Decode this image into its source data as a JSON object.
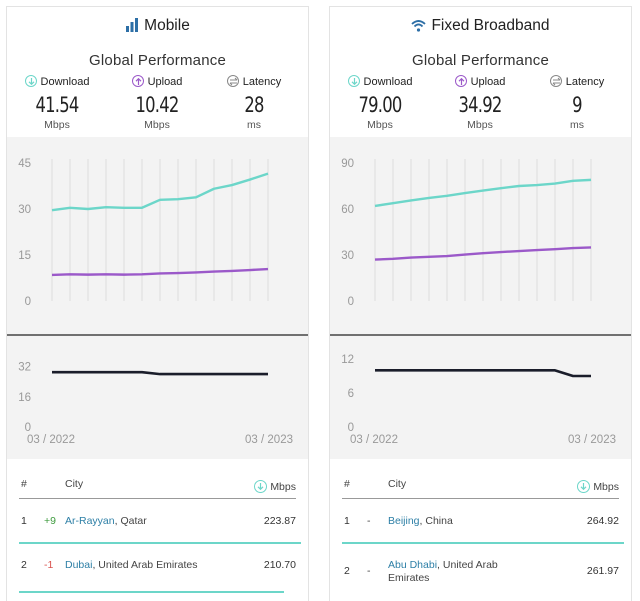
{
  "colors": {
    "download": "#6cd6c9",
    "upload": "#9b59c9",
    "latency": "#1a1d2a",
    "grid": "#dcdcdc",
    "axis_label": "#999999",
    "city_link": "#2d7fa6",
    "positive": "#3d9b3d",
    "negative": "#d9534f"
  },
  "panels": [
    {
      "title": "Mobile",
      "title_icon": "signal-bars-icon",
      "subtitle": "Global Performance",
      "metrics": [
        {
          "label": "Download",
          "value": "41.54",
          "unit": "Mbps",
          "icon": "download-arrow-icon"
        },
        {
          "label": "Upload",
          "value": "10.42",
          "unit": "Mbps",
          "icon": "upload-arrow-icon"
        },
        {
          "label": "Latency",
          "value": "28",
          "unit": "ms",
          "icon": "latency-arrows-icon"
        }
      ],
      "table": {
        "col_rank": "#",
        "col_city": "City",
        "col_unit": "Mbps",
        "rows": [
          {
            "rank": "1",
            "change": "+9",
            "city": "Ar-Rayyan",
            "country": "Qatar",
            "value": "223.87"
          },
          {
            "rank": "2",
            "change": "-1",
            "city": "Dubai",
            "country": "United Arab Emirates",
            "value": "210.70"
          }
        ]
      }
    },
    {
      "title": "Fixed Broadband",
      "title_icon": "wifi-icon",
      "subtitle": "Global Performance",
      "metrics": [
        {
          "label": "Download",
          "value": "79.00",
          "unit": "Mbps",
          "icon": "download-arrow-icon"
        },
        {
          "label": "Upload",
          "value": "34.92",
          "unit": "Mbps",
          "icon": "upload-arrow-icon"
        },
        {
          "label": "Latency",
          "value": "9",
          "unit": "ms",
          "icon": "latency-arrows-icon"
        }
      ],
      "table": {
        "col_rank": "#",
        "col_city": "City",
        "col_unit": "Mbps",
        "rows": [
          {
            "rank": "1",
            "change": "-",
            "city": "Beijing",
            "country": "China",
            "value": "264.92"
          },
          {
            "rank": "2",
            "change": "-",
            "city": "Abu Dhabi",
            "country": "United Arab Emirates",
            "value": "261.97"
          }
        ]
      }
    }
  ],
  "chart_data": [
    {
      "type": "line",
      "panel": "Mobile",
      "x_tick_labels": [
        "03 / 2022",
        "03 / 2023"
      ],
      "x": [
        "03/2022",
        "04/2022",
        "05/2022",
        "06/2022",
        "07/2022",
        "08/2022",
        "09/2022",
        "10/2022",
        "11/2022",
        "12/2022",
        "01/2023",
        "02/2023",
        "03/2023"
      ],
      "speed_chart": {
        "yticks": [
          0,
          15,
          30,
          45
        ],
        "ylim": [
          0,
          45
        ],
        "grid": true,
        "series": [
          {
            "metric": "download",
            "values": [
              29.6,
              30.4,
              30.0,
              30.6,
              30.4,
              30.4,
              33.0,
              33.2,
              33.8,
              36.6,
              37.8,
              39.6,
              41.54
            ]
          },
          {
            "metric": "upload",
            "values": [
              8.5,
              8.7,
              8.6,
              8.7,
              8.6,
              8.7,
              9.0,
              9.1,
              9.3,
              9.6,
              9.8,
              10.1,
              10.42
            ]
          }
        ]
      },
      "latency_chart": {
        "yticks": [
          0,
          16,
          32
        ],
        "ylim": [
          0,
          36
        ],
        "series": [
          {
            "metric": "latency",
            "values": [
              29,
              29,
              29,
              29,
              29,
              29,
              28,
              28,
              28,
              28,
              28,
              28,
              28
            ]
          }
        ]
      }
    },
    {
      "type": "line",
      "panel": "Fixed Broadband",
      "x_tick_labels": [
        "03 / 2022",
        "03 / 2023"
      ],
      "x": [
        "03/2022",
        "04/2022",
        "05/2022",
        "06/2022",
        "07/2022",
        "08/2022",
        "09/2022",
        "10/2022",
        "11/2022",
        "12/2022",
        "01/2023",
        "02/2023",
        "03/2023"
      ],
      "speed_chart": {
        "yticks": [
          0,
          30,
          60,
          90
        ],
        "ylim": [
          0,
          90
        ],
        "grid": true,
        "series": [
          {
            "metric": "download",
            "values": [
              62.0,
              63.8,
              65.6,
              67.2,
              68.6,
              70.4,
              72.0,
              73.6,
              75.0,
              75.6,
              76.6,
              78.4,
              79.0
            ]
          },
          {
            "metric": "upload",
            "values": [
              27.0,
              27.5,
              28.3,
              28.8,
              29.3,
              30.3,
              31.2,
              31.9,
              32.6,
              33.2,
              33.8,
              34.5,
              34.92
            ]
          }
        ]
      },
      "latency_chart": {
        "yticks": [
          0,
          6,
          12
        ],
        "ylim": [
          0,
          12
        ],
        "series": [
          {
            "metric": "latency",
            "values": [
              10,
              10,
              10,
              10,
              10,
              10,
              10,
              10,
              10,
              10,
              10,
              9,
              9
            ]
          }
        ]
      }
    }
  ]
}
